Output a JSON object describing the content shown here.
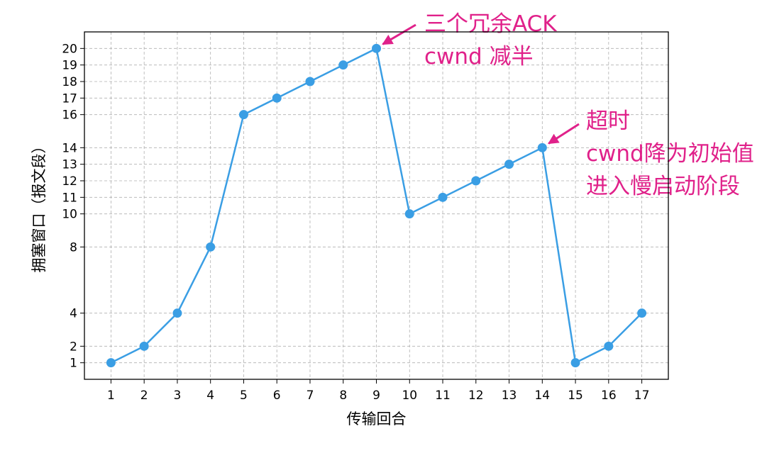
{
  "chart_data": {
    "type": "line",
    "title": "",
    "xlabel": "传输回合",
    "ylabel": "拥塞窗口（报文段）",
    "x": [
      1,
      2,
      3,
      4,
      5,
      6,
      7,
      8,
      9,
      10,
      11,
      12,
      13,
      14,
      15,
      16,
      17
    ],
    "series": [
      {
        "values": [
          1,
          2,
          4,
          8,
          16,
          17,
          18,
          19,
          20,
          10,
          11,
          12,
          13,
          14,
          1,
          2,
          4
        ]
      }
    ],
    "xlim": [
      0.2,
      17.8
    ],
    "ylim": [
      0,
      21
    ],
    "xticks": [
      1,
      2,
      3,
      4,
      5,
      6,
      7,
      8,
      9,
      10,
      11,
      12,
      13,
      14,
      15,
      16,
      17
    ],
    "yticks": [
      1,
      2,
      4,
      8,
      10,
      11,
      12,
      13,
      14,
      16,
      17,
      18,
      19,
      20
    ],
    "grid": true,
    "line_color": "#3a9ee4",
    "annotation_color": "#e0218a",
    "annotations": [
      {
        "x": 9,
        "y": 20,
        "lines": [
          "三个冗余ACK",
          "cwnd 减半"
        ]
      },
      {
        "x": 14,
        "y": 14,
        "lines": [
          "超时",
          "cwnd降为初始值",
          "进入慢启动阶段"
        ]
      }
    ]
  }
}
